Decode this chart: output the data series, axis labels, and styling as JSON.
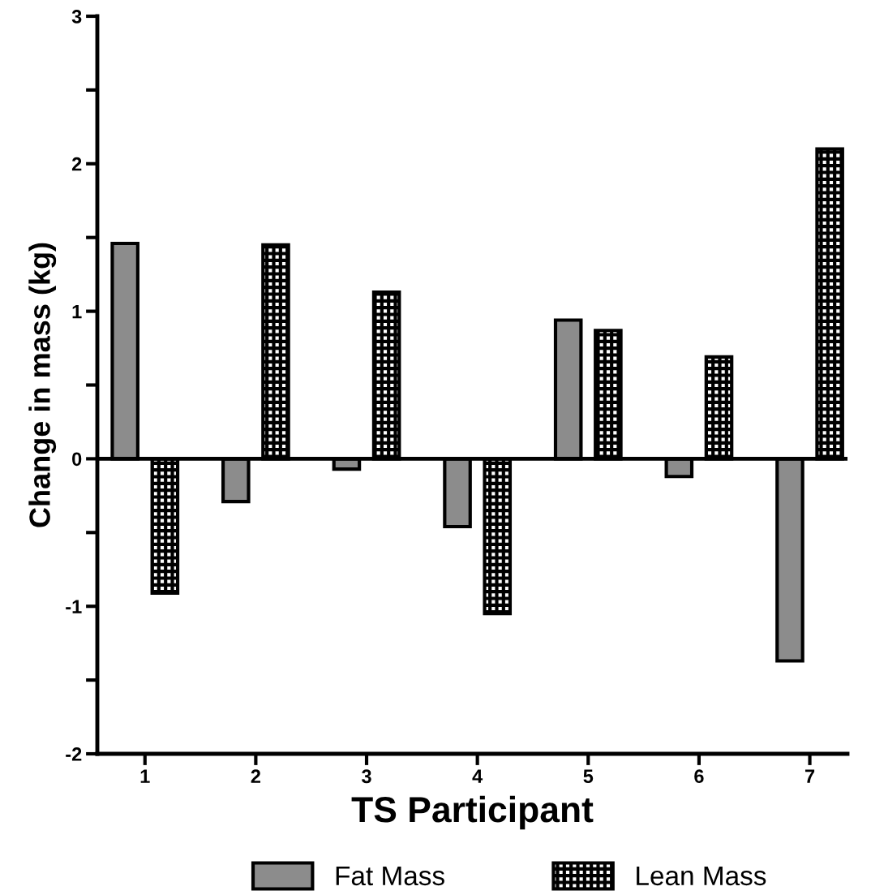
{
  "chart_data": {
    "type": "bar",
    "xlabel": "TS Participant",
    "ylabel": "Change in mass (kg)",
    "categories": [
      "1",
      "2",
      "3",
      "4",
      "5",
      "6",
      "7"
    ],
    "series": [
      {
        "name": "Fat Mass",
        "color": "#8c8c8c",
        "values": [
          1.46,
          -0.29,
          -0.07,
          -0.46,
          0.94,
          -0.12,
          -1.37
        ]
      },
      {
        "name": "Lean Mass",
        "color": "#000000",
        "values": [
          -0.91,
          1.45,
          1.13,
          -1.05,
          0.87,
          0.69,
          2.1
        ]
      }
    ],
    "ylim": [
      -2,
      3
    ],
    "yticks": [
      -2,
      {
        "value": -1.5,
        "label": null
      },
      -1,
      {
        "value": -0.5,
        "label": null
      },
      0,
      {
        "value": 0.5,
        "label": null
      },
      1,
      {
        "value": 1.5,
        "label": null
      },
      2,
      {
        "value": 2.5,
        "label": null
      },
      3
    ],
    "ref_lines": [
      {
        "axis": "y",
        "value": 0,
        "color": "#000000"
      }
    ],
    "grid": false,
    "legend": "bottom"
  }
}
